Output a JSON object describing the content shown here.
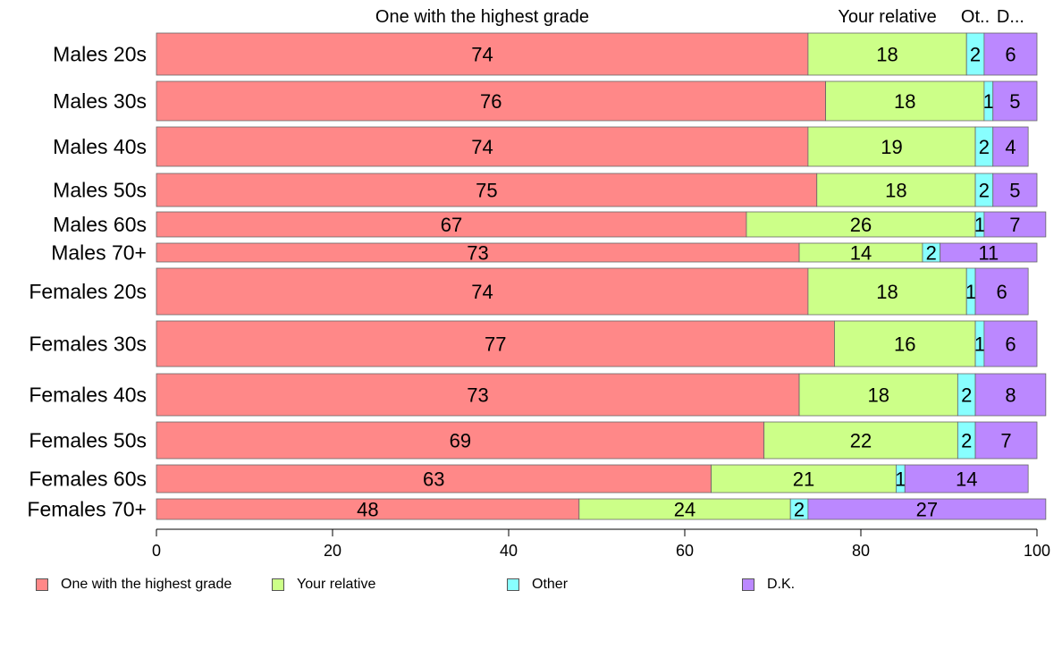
{
  "chart_data": {
    "type": "bar",
    "orientation": "horizontal",
    "stacked": true,
    "percent_scale": true,
    "categories": [
      "Males 20s",
      "Males 30s",
      "Males 40s",
      "Males 50s",
      "Males 60s",
      "Males 70+",
      "Females 20s",
      "Females 30s",
      "Females 40s",
      "Females 50s",
      "Females 60s",
      "Females 70+"
    ],
    "series": [
      {
        "name": "One with the highest grade",
        "color": "#ff8888",
        "values": [
          74,
          76,
          74,
          75,
          67,
          73,
          74,
          77,
          73,
          69,
          63,
          48
        ]
      },
      {
        "name": "Your relative",
        "color": "#ccff88",
        "values": [
          18,
          18,
          19,
          18,
          26,
          14,
          18,
          16,
          18,
          22,
          21,
          24
        ]
      },
      {
        "name": "Other",
        "color": "#88ffff",
        "values": [
          2,
          1,
          2,
          2,
          1,
          2,
          1,
          1,
          2,
          2,
          1,
          2
        ]
      },
      {
        "name": "D.K.",
        "color": "#bb88ff",
        "values": [
          6,
          5,
          4,
          5,
          7,
          11,
          6,
          6,
          8,
          7,
          14,
          27
        ]
      }
    ],
    "top_labels": [
      "One with the highest grade",
      "Your relative",
      "Ot..",
      "D..."
    ],
    "xlim": [
      0,
      100
    ],
    "xticks": [
      "0",
      "20",
      "40",
      "60",
      "80",
      "100"
    ],
    "grid": false,
    "legend_position": "bottom"
  }
}
